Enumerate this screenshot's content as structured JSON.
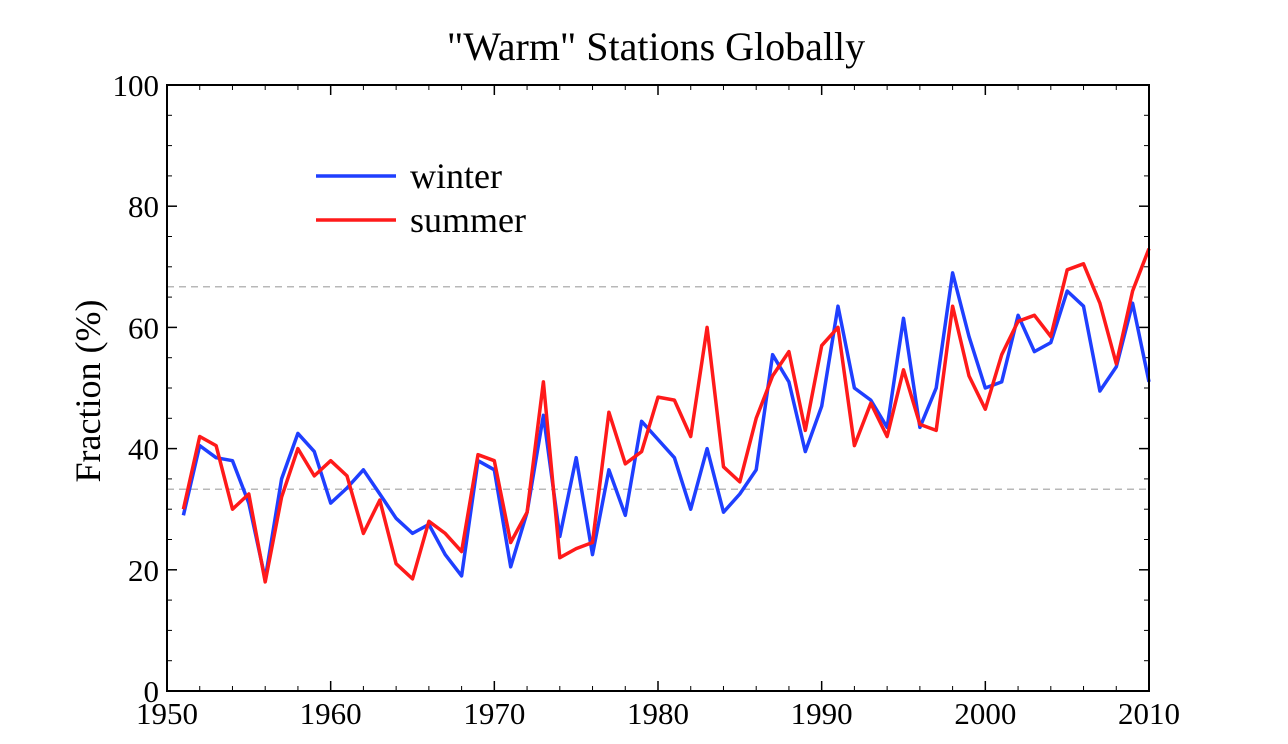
{
  "chart_data": {
    "type": "line",
    "title": "\"Warm\" Stations Globally",
    "xlabel": "",
    "ylabel": "Fraction (%)",
    "xlim": [
      1950,
      2010
    ],
    "ylim": [
      0,
      100
    ],
    "x_ticks": [
      1950,
      1960,
      1970,
      1980,
      1990,
      2000,
      2010
    ],
    "y_ticks": [
      0,
      20,
      40,
      60,
      80,
      100
    ],
    "reference_lines": [
      33.3,
      66.7
    ],
    "grid": false,
    "legend_position": "top-left",
    "x": [
      1951,
      1952,
      1953,
      1954,
      1955,
      1956,
      1957,
      1958,
      1959,
      1960,
      1961,
      1962,
      1963,
      1964,
      1965,
      1966,
      1967,
      1968,
      1969,
      1970,
      1971,
      1972,
      1973,
      1974,
      1975,
      1976,
      1977,
      1978,
      1979,
      1980,
      1981,
      1982,
      1983,
      1984,
      1985,
      1986,
      1987,
      1988,
      1989,
      1990,
      1991,
      1992,
      1993,
      1994,
      1995,
      1996,
      1997,
      1998,
      1999,
      2000,
      2001,
      2002,
      2003,
      2004,
      2005,
      2006,
      2007,
      2008,
      2009,
      2010
    ],
    "series": [
      {
        "name": "winter",
        "color": "#1f3fff",
        "values": [
          29,
          40.5,
          38.5,
          38,
          31,
          18.5,
          35,
          42.5,
          39.5,
          31,
          33.5,
          36.5,
          32.5,
          28.5,
          26,
          27.5,
          22.5,
          19,
          38,
          36.5,
          20.5,
          29.5,
          45.5,
          25.5,
          38.5,
          22.5,
          36.5,
          29,
          44.5,
          41.5,
          38.5,
          30,
          40,
          29.5,
          32.5,
          36.5,
          55.5,
          51,
          39.5,
          47,
          63.5,
          50,
          48,
          43.5,
          61.5,
          43.5,
          50,
          69,
          58.5,
          50,
          51,
          62,
          56,
          57.5,
          66,
          63.5,
          49.5,
          53.5,
          64,
          51
        ]
      },
      {
        "name": "summer",
        "color": "#ff1a1a",
        "values": [
          30,
          42,
          40.5,
          30,
          32.5,
          18,
          32,
          40,
          35.5,
          38,
          35.5,
          26,
          31.5,
          21,
          18.5,
          28,
          26,
          23,
          39,
          38,
          24.5,
          29.5,
          51,
          22,
          23.5,
          24.5,
          46,
          37.5,
          39.5,
          48.5,
          48,
          42,
          60,
          37,
          34.5,
          45,
          52,
          56,
          43,
          57,
          60,
          40.5,
          47.5,
          42,
          53,
          44,
          43,
          63.5,
          52,
          46.5,
          55.5,
          61,
          62,
          58.5,
          69.5,
          70.5,
          64,
          54,
          66,
          73
        ]
      }
    ]
  }
}
